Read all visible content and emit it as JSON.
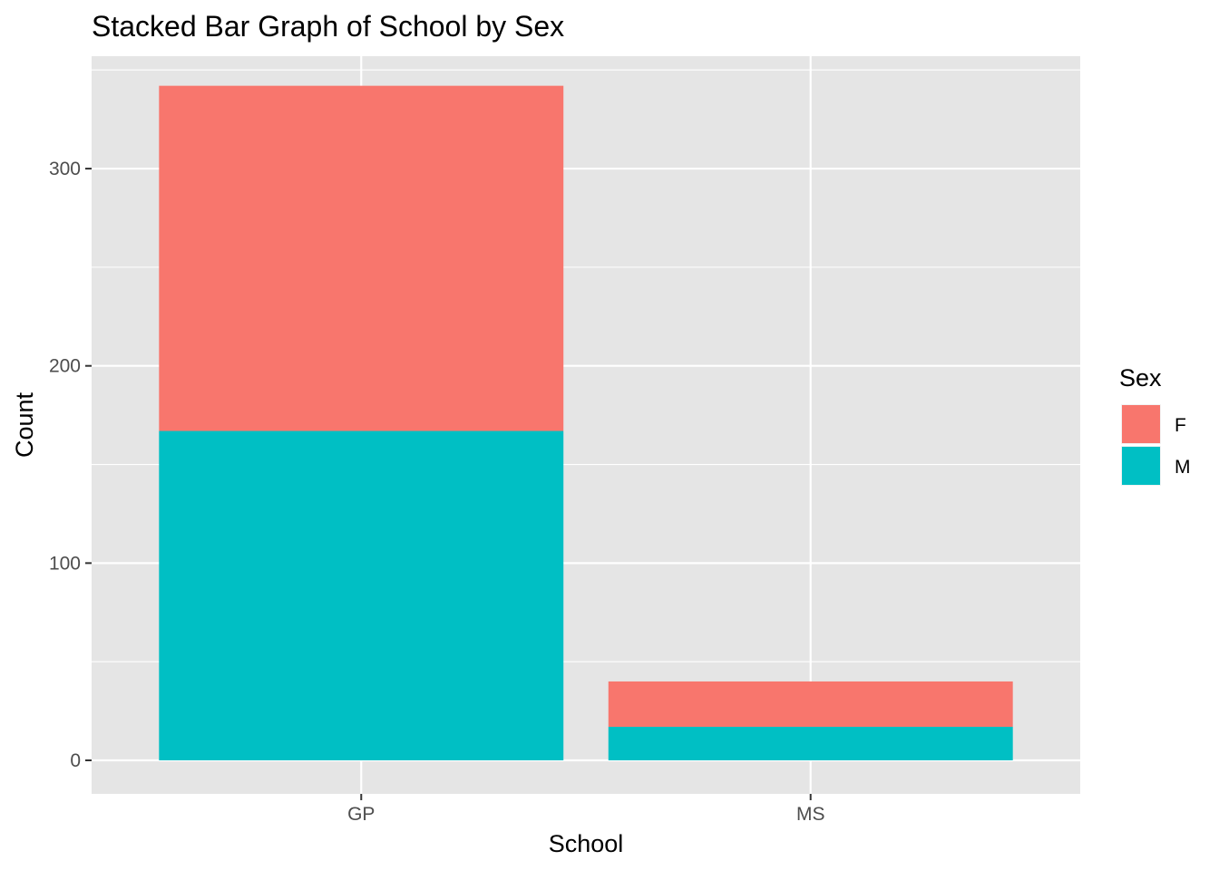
{
  "chart_data": {
    "type": "bar",
    "stacked": true,
    "title": "Stacked Bar Graph of School by Sex",
    "xlabel": "School",
    "ylabel": "Count",
    "categories": [
      "GP",
      "MS"
    ],
    "series": [
      {
        "name": "F",
        "values": [
          175,
          23
        ],
        "color": "#F8766D"
      },
      {
        "name": "M",
        "values": [
          167,
          17
        ],
        "color": "#00BFC4"
      }
    ],
    "stack_order": [
      "M",
      "F"
    ],
    "ylim": [
      -17,
      357
    ],
    "yticks": [
      0,
      100,
      200,
      300
    ],
    "grid": true,
    "panel_background": "#E5E5E5",
    "grid_color": "#FFFFFF",
    "legend": {
      "title": "Sex",
      "placement": "right"
    }
  }
}
